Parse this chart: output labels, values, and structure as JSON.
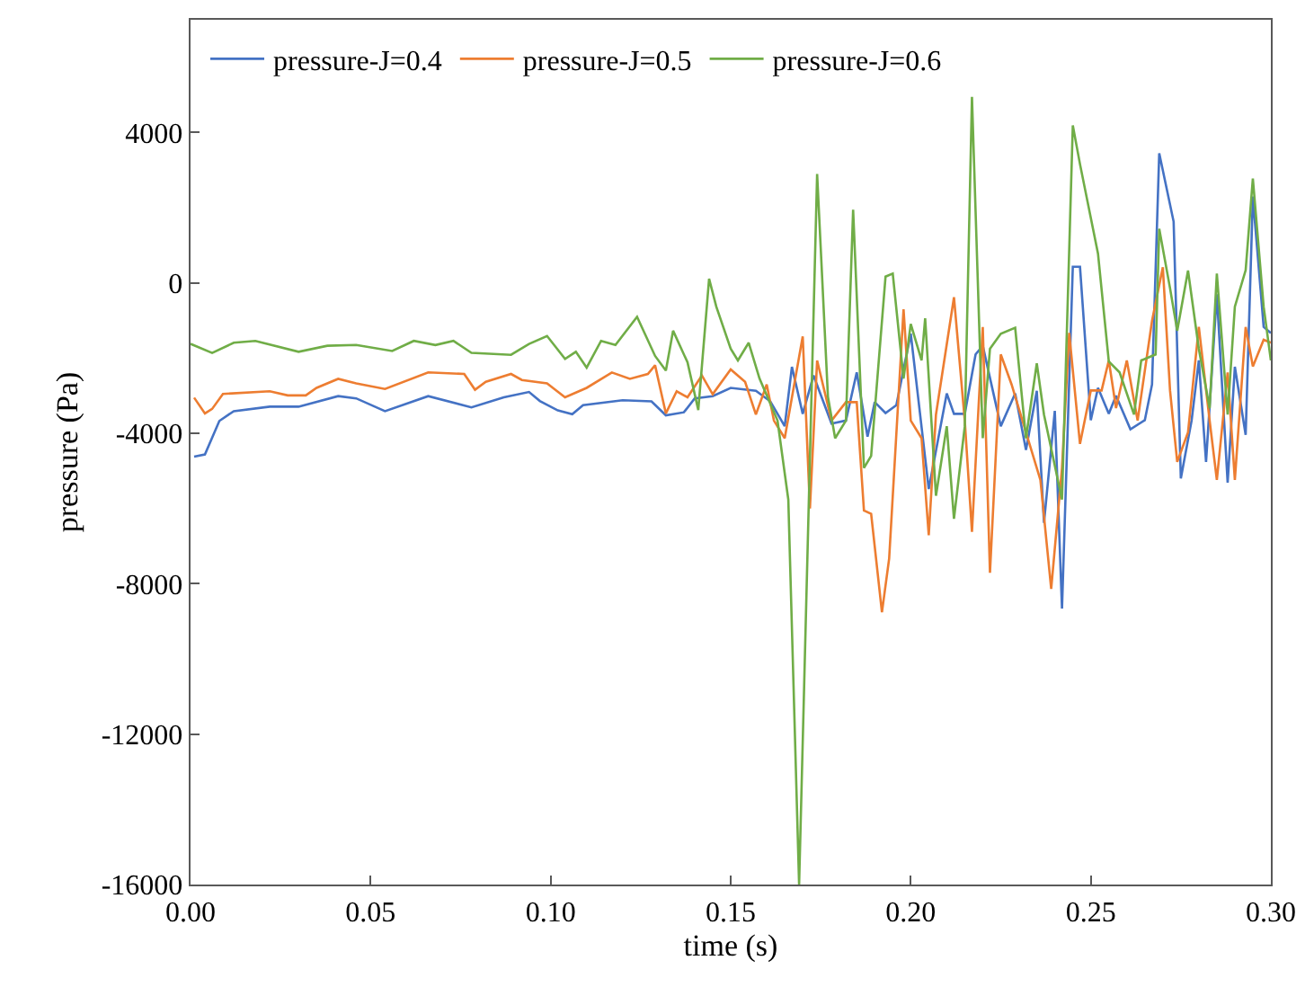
{
  "chart_data": {
    "type": "line",
    "xlabel": "time (s)",
    "ylabel": "pressure (Pa)",
    "xlim": [
      0,
      0.3
    ],
    "xticks": [
      {
        "value": 0,
        "label": "0.00"
      },
      {
        "value": 0.05,
        "label": "0.05"
      },
      {
        "value": 0.1,
        "label": "0.10"
      },
      {
        "value": 0.15,
        "label": "0.15"
      },
      {
        "value": 0.2,
        "label": "0.20"
      },
      {
        "value": 0.25,
        "label": "0.25"
      },
      {
        "value": 0.3,
        "label": "0.30"
      }
    ],
    "ylim": [
      -16000,
      7000
    ],
    "yticks": [
      -16000,
      -12000,
      -8000,
      -4000,
      0,
      4000
    ],
    "legend": "top left",
    "marker": "none",
    "line_style": "solid",
    "series": [
      {
        "name": "pressure-J=0.4",
        "color": "#4472c4",
        "x": [
          0.001,
          0.004,
          0.008,
          0.012,
          0.022,
          0.03,
          0.041,
          0.046,
          0.054,
          0.066,
          0.078,
          0.087,
          0.094,
          0.097,
          0.102,
          0.106,
          0.109,
          0.12,
          0.128,
          0.132,
          0.137,
          0.14,
          0.145,
          0.15,
          0.157,
          0.161,
          0.165,
          0.167,
          0.17,
          0.173,
          0.178,
          0.182,
          0.185,
          0.188,
          0.19,
          0.193,
          0.196,
          0.2,
          0.205,
          0.21,
          0.212,
          0.215,
          0.218,
          0.22,
          0.225,
          0.229,
          0.232,
          0.235,
          0.237,
          0.24,
          0.242,
          0.245,
          0.247,
          0.25,
          0.252,
          0.255,
          0.257,
          0.261,
          0.265,
          0.267,
          0.269,
          0.273,
          0.275,
          0.278,
          0.28,
          0.282,
          0.285,
          0.288,
          0.29,
          0.293,
          0.295,
          0.298,
          0.3
        ],
        "values": [
          -4620,
          -4560,
          -3670,
          -3410,
          -3290,
          -3290,
          -3010,
          -3070,
          -3410,
          -3010,
          -3310,
          -3040,
          -2900,
          -3140,
          -3390,
          -3490,
          -3250,
          -3120,
          -3150,
          -3520,
          -3440,
          -3070,
          -3010,
          -2790,
          -2870,
          -3150,
          -3810,
          -2230,
          -3480,
          -2460,
          -3740,
          -3660,
          -2380,
          -4090,
          -3170,
          -3460,
          -3250,
          -1350,
          -5480,
          -2940,
          -3480,
          -3480,
          -1900,
          -1670,
          -3810,
          -2940,
          -4440,
          -2870,
          -6380,
          -3400,
          -8660,
          430,
          430,
          -3650,
          -2790,
          -3480,
          -3000,
          -3890,
          -3650,
          -2700,
          3450,
          1630,
          -5200,
          -3650,
          -2060,
          -4760,
          -300,
          -5310,
          -2230,
          -4040,
          2300,
          -1170,
          -1330
        ]
      },
      {
        "name": "pressure-J=0.5",
        "color": "#ed7d31",
        "x": [
          0.001,
          0.004,
          0.006,
          0.009,
          0.022,
          0.027,
          0.032,
          0.035,
          0.041,
          0.046,
          0.054,
          0.066,
          0.076,
          0.079,
          0.082,
          0.089,
          0.092,
          0.099,
          0.104,
          0.11,
          0.117,
          0.122,
          0.127,
          0.129,
          0.132,
          0.135,
          0.138,
          0.142,
          0.145,
          0.15,
          0.154,
          0.157,
          0.16,
          0.162,
          0.165,
          0.17,
          0.172,
          0.174,
          0.178,
          0.182,
          0.185,
          0.187,
          0.189,
          0.192,
          0.194,
          0.198,
          0.2,
          0.203,
          0.205,
          0.207,
          0.212,
          0.215,
          0.217,
          0.22,
          0.222,
          0.225,
          0.228,
          0.232,
          0.236,
          0.239,
          0.242,
          0.244,
          0.247,
          0.25,
          0.253,
          0.255,
          0.257,
          0.26,
          0.263,
          0.267,
          0.27,
          0.272,
          0.274,
          0.277,
          0.28,
          0.283,
          0.285,
          0.288,
          0.29,
          0.293,
          0.295,
          0.298,
          0.3
        ],
        "values": [
          -3050,
          -3470,
          -3350,
          -2950,
          -2880,
          -2990,
          -2990,
          -2790,
          -2550,
          -2670,
          -2820,
          -2380,
          -2420,
          -2840,
          -2630,
          -2420,
          -2580,
          -2670,
          -3040,
          -2790,
          -2380,
          -2550,
          -2420,
          -2190,
          -3470,
          -2880,
          -3040,
          -2460,
          -2960,
          -2300,
          -2630,
          -3500,
          -2700,
          -3660,
          -4130,
          -1420,
          -6000,
          -2060,
          -3660,
          -3170,
          -3170,
          -6050,
          -6140,
          -8760,
          -7330,
          -700,
          -3660,
          -4130,
          -6710,
          -3500,
          -380,
          -3660,
          -6620,
          -1170,
          -7710,
          -1900,
          -2700,
          -3970,
          -5240,
          -8140,
          -4920,
          -1330,
          -4280,
          -2860,
          -2860,
          -2060,
          -3330,
          -2060,
          -3660,
          -1010,
          420,
          -2860,
          -4760,
          -3970,
          -1170,
          -3660,
          -5240,
          -2380,
          -5240,
          -1170,
          -2220,
          -1510,
          -1590
        ]
      },
      {
        "name": "pressure-J=0.6",
        "color": "#70ad47",
        "x": [
          0.0,
          0.006,
          0.012,
          0.018,
          0.03,
          0.038,
          0.046,
          0.056,
          0.062,
          0.068,
          0.073,
          0.078,
          0.089,
          0.094,
          0.099,
          0.104,
          0.107,
          0.11,
          0.114,
          0.118,
          0.124,
          0.129,
          0.132,
          0.134,
          0.138,
          0.141,
          0.144,
          0.146,
          0.15,
          0.152,
          0.155,
          0.158,
          0.163,
          0.166,
          0.169,
          0.174,
          0.177,
          0.179,
          0.182,
          0.184,
          0.187,
          0.189,
          0.193,
          0.195,
          0.198,
          0.2,
          0.203,
          0.204,
          0.207,
          0.21,
          0.212,
          0.215,
          0.217,
          0.22,
          0.222,
          0.225,
          0.229,
          0.232,
          0.235,
          0.237,
          0.242,
          0.245,
          0.247,
          0.252,
          0.255,
          0.258,
          0.262,
          0.264,
          0.268,
          0.269,
          0.272,
          0.274,
          0.277,
          0.28,
          0.283,
          0.285,
          0.288,
          0.29,
          0.293,
          0.295,
          0.298,
          0.3
        ],
        "values": [
          -1620,
          -1860,
          -1590,
          -1540,
          -1830,
          -1670,
          -1650,
          -1810,
          -1540,
          -1650,
          -1540,
          -1860,
          -1910,
          -1620,
          -1410,
          -2020,
          -1830,
          -2250,
          -1540,
          -1650,
          -900,
          -1940,
          -2330,
          -1270,
          -2110,
          -3380,
          110,
          -630,
          -1750,
          -2060,
          -1590,
          -2540,
          -3660,
          -5760,
          -16000,
          2900,
          -3020,
          -4130,
          -3660,
          1950,
          -4920,
          -4600,
          170,
          250,
          -2540,
          -1090,
          -2060,
          -940,
          -5660,
          -3810,
          -6270,
          -3810,
          4950,
          -4130,
          -1750,
          -1350,
          -1190,
          -4130,
          -2140,
          -3500,
          -5760,
          4190,
          3160,
          780,
          -2090,
          -2380,
          -3500,
          -2060,
          -1900,
          1440,
          -140,
          -1270,
          330,
          -1750,
          -3330,
          250,
          -3500,
          -630,
          340,
          2780,
          -630,
          -2060
        ]
      }
    ]
  }
}
